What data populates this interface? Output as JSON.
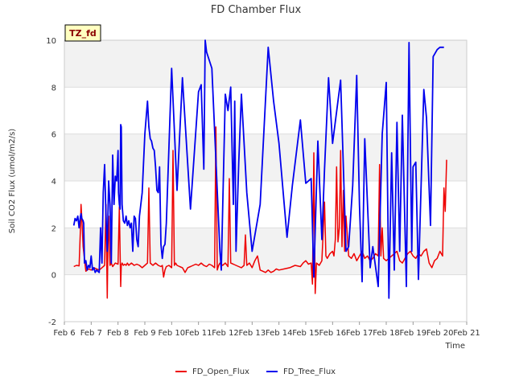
{
  "chart_data": {
    "type": "line",
    "title": "FD Chamber Flux",
    "xlabel": "Time",
    "ylabel": "Soil CO2 Flux (umol/m2/s)",
    "annotation": "TZ_fd",
    "xlim": [
      6,
      21
    ],
    "ylim": [
      -2,
      10
    ],
    "x_ticks": [
      {
        "value": 6,
        "label": "Feb 6"
      },
      {
        "value": 7,
        "label": "Feb 7"
      },
      {
        "value": 8,
        "label": "Feb 8"
      },
      {
        "value": 9,
        "label": "Feb 9"
      },
      {
        "value": 10,
        "label": "Feb 10"
      },
      {
        "value": 11,
        "label": "Feb 11"
      },
      {
        "value": 12,
        "label": "Feb 12"
      },
      {
        "value": 13,
        "label": "Feb 13"
      },
      {
        "value": 14,
        "label": "Feb 14"
      },
      {
        "value": 15,
        "label": "Feb 15"
      },
      {
        "value": 16,
        "label": "Feb 16"
      },
      {
        "value": 17,
        "label": "Feb 17"
      },
      {
        "value": 18,
        "label": "Feb 18"
      },
      {
        "value": 19,
        "label": "Feb 19"
      },
      {
        "value": 20,
        "label": "Feb 20"
      },
      {
        "value": 21,
        "label": "Feb 21"
      }
    ],
    "y_ticks": [
      {
        "value": -2,
        "label": "-2"
      },
      {
        "value": 0,
        "label": "0"
      },
      {
        "value": 2,
        "label": "2"
      },
      {
        "value": 4,
        "label": "4"
      },
      {
        "value": 6,
        "label": "6"
      },
      {
        "value": 8,
        "label": "8"
      },
      {
        "value": 10,
        "label": "10"
      }
    ],
    "legend_position": "bottom-center",
    "series": [
      {
        "name": "FD_Open_Flux",
        "color": "#ee0000",
        "x": [
          6.35,
          6.45,
          6.55,
          6.6,
          6.62,
          6.65,
          6.7,
          6.8,
          6.9,
          7.0,
          7.1,
          7.2,
          7.3,
          7.4,
          7.5,
          7.55,
          7.6,
          7.62,
          7.65,
          7.7,
          7.75,
          7.8,
          7.9,
          8.0,
          8.05,
          8.1,
          8.12,
          8.15,
          8.2,
          8.25,
          8.3,
          8.35,
          8.4,
          8.5,
          8.6,
          8.7,
          8.8,
          8.9,
          9.0,
          9.1,
          9.15,
          9.2,
          9.25,
          9.3,
          9.4,
          9.5,
          9.6,
          9.65,
          9.7,
          9.75,
          9.8,
          9.9,
          10.0,
          10.05,
          10.1,
          10.15,
          10.2,
          10.3,
          10.4,
          10.5,
          10.6,
          10.7,
          10.8,
          10.9,
          11.0,
          11.1,
          11.2,
          11.3,
          11.4,
          11.5,
          11.6,
          11.65,
          11.7,
          11.75,
          11.8,
          11.9,
          12.0,
          12.1,
          12.15,
          12.2,
          12.3,
          12.4,
          12.5,
          12.6,
          12.7,
          12.75,
          12.8,
          12.9,
          13.0,
          13.1,
          13.2,
          13.3,
          13.4,
          13.5,
          13.6,
          13.7,
          13.8,
          13.9,
          14.0,
          14.2,
          14.4,
          14.6,
          14.8,
          14.9,
          15.0,
          15.1,
          15.2,
          15.25,
          15.3,
          15.35,
          15.4,
          15.5,
          15.6,
          15.7,
          15.75,
          15.8,
          15.9,
          16.0,
          16.05,
          16.1,
          16.15,
          16.2,
          16.25,
          16.3,
          16.35,
          16.4,
          16.45,
          16.5,
          16.6,
          16.7,
          16.8,
          16.9,
          17.0,
          17.1,
          17.2,
          17.3,
          17.4,
          17.5,
          17.6,
          17.7,
          17.75,
          17.8,
          17.85,
          17.9,
          18.0,
          18.1,
          18.2,
          18.3,
          18.4,
          18.5,
          18.6,
          18.7,
          18.8,
          18.9,
          19.0,
          19.1,
          19.2,
          19.3,
          19.4,
          19.5,
          19.6,
          19.7,
          19.8,
          19.9,
          20.0,
          20.1,
          20.15,
          20.2,
          20.25
        ],
        "values": [
          0.35,
          0.4,
          0.38,
          2.0,
          3.0,
          2.4,
          1.2,
          0.15,
          0.25,
          0.2,
          0.3,
          0.25,
          0.2,
          0.3,
          0.4,
          3.0,
          -1.0,
          1.0,
          2.5,
          0.4,
          0.5,
          0.35,
          0.5,
          0.45,
          2.9,
          -0.5,
          0.4,
          0.5,
          0.4,
          0.45,
          0.4,
          0.5,
          0.4,
          0.5,
          0.4,
          0.45,
          0.4,
          0.3,
          0.4,
          0.5,
          3.7,
          0.5,
          0.45,
          0.4,
          0.5,
          0.4,
          0.35,
          0.4,
          -0.1,
          0.2,
          0.35,
          0.4,
          0.3,
          5.3,
          0.4,
          0.5,
          0.4,
          0.35,
          0.3,
          0.1,
          0.3,
          0.35,
          0.4,
          0.45,
          0.4,
          0.5,
          0.4,
          0.35,
          0.45,
          0.4,
          0.3,
          6.3,
          0.2,
          0.4,
          0.5,
          0.4,
          0.5,
          0.35,
          4.1,
          0.5,
          0.45,
          0.4,
          0.35,
          0.3,
          0.4,
          1.7,
          0.4,
          0.5,
          0.3,
          0.6,
          0.8,
          0.2,
          0.15,
          0.1,
          0.2,
          0.1,
          0.15,
          0.25,
          0.2,
          0.25,
          0.3,
          0.4,
          0.35,
          0.5,
          0.6,
          0.45,
          0.5,
          -0.4,
          5.2,
          -0.8,
          0.5,
          0.4,
          0.6,
          3.1,
          0.8,
          0.7,
          0.9,
          1.0,
          0.8,
          1.5,
          4.6,
          1.4,
          2.0,
          5.3,
          1.2,
          3.6,
          1.0,
          2.5,
          0.8,
          0.7,
          0.9,
          0.6,
          0.8,
          1.0,
          0.7,
          0.8,
          0.6,
          0.7,
          0.9,
          0.8,
          4.7,
          0.8,
          2.0,
          0.7,
          0.6,
          0.7,
          0.8,
          0.9,
          1.0,
          0.6,
          0.5,
          0.7,
          0.9,
          1.0,
          0.8,
          0.7,
          0.9,
          0.8,
          1.0,
          1.1,
          0.5,
          0.3,
          0.6,
          0.7,
          1.0,
          0.8,
          3.7,
          2.7,
          4.9
        ]
      },
      {
        "name": "FD_Tree_Flux",
        "color": "#0000ee",
        "x": [
          6.35,
          6.4,
          6.45,
          6.5,
          6.55,
          6.6,
          6.62,
          6.65,
          6.7,
          6.72,
          6.75,
          6.8,
          6.85,
          6.9,
          6.95,
          7.0,
          7.05,
          7.1,
          7.15,
          7.2,
          7.3,
          7.35,
          7.4,
          7.45,
          7.5,
          7.55,
          7.6,
          7.65,
          7.7,
          7.75,
          7.8,
          7.85,
          7.9,
          7.95,
          8.0,
          8.02,
          8.05,
          8.08,
          8.1,
          8.12,
          8.15,
          8.2,
          8.25,
          8.3,
          8.35,
          8.4,
          8.45,
          8.5,
          8.55,
          8.6,
          8.65,
          8.7,
          8.75,
          8.8,
          8.9,
          9.0,
          9.1,
          9.15,
          9.2,
          9.25,
          9.3,
          9.35,
          9.4,
          9.45,
          9.5,
          9.55,
          9.6,
          9.65,
          9.7,
          9.75,
          9.8,
          9.9,
          10.0,
          10.2,
          10.4,
          10.7,
          11.0,
          11.1,
          11.2,
          11.25,
          11.3,
          11.5,
          11.8,
          11.85,
          11.9,
          12.0,
          12.1,
          12.2,
          12.3,
          12.35,
          12.4,
          12.5,
          12.6,
          12.8,
          13.0,
          13.3,
          13.6,
          13.8,
          14.0,
          14.3,
          14.5,
          14.8,
          15.0,
          15.2,
          15.3,
          15.45,
          15.6,
          15.7,
          15.85,
          16.0,
          16.3,
          16.5,
          16.6,
          16.75,
          16.9,
          17.0,
          17.1,
          17.2,
          17.4,
          17.5,
          17.7,
          17.85,
          18.0,
          18.1,
          18.2,
          18.3,
          18.4,
          18.5,
          18.6,
          18.75,
          18.85,
          18.95,
          19.0,
          19.1,
          19.2,
          19.4,
          19.5,
          19.65,
          19.75,
          19.9,
          20.0,
          20.15
        ],
        "values": [
          2.1,
          2.4,
          2.3,
          2.5,
          2.0,
          2.5,
          2.6,
          2.4,
          2.3,
          2.2,
          0.5,
          0.6,
          0.2,
          0.4,
          0.3,
          0.8,
          0.2,
          0.3,
          0.1,
          0.2,
          0.1,
          2.0,
          0.5,
          3.5,
          4.7,
          2.5,
          1.0,
          4.0,
          3.0,
          0.5,
          5.1,
          3.0,
          4.2,
          4.0,
          5.3,
          3.5,
          3.0,
          2.8,
          6.4,
          6.3,
          3.0,
          2.3,
          2.2,
          2.5,
          2.1,
          2.3,
          2.0,
          2.2,
          1.0,
          2.5,
          2.4,
          1.5,
          1.2,
          2.5,
          3.5,
          6.0,
          7.4,
          6.3,
          5.8,
          5.7,
          5.4,
          5.3,
          4.6,
          3.6,
          3.5,
          4.6,
          1.3,
          0.7,
          1.2,
          1.3,
          2.2,
          5.5,
          8.8,
          3.6,
          8.4,
          2.8,
          7.8,
          8.1,
          4.5,
          10.0,
          9.5,
          8.8,
          1.0,
          0.2,
          2.8,
          7.7,
          7.0,
          8.0,
          3.0,
          7.4,
          1.0,
          4.8,
          7.7,
          3.5,
          1.0,
          3.0,
          9.7,
          7.4,
          5.6,
          1.6,
          3.8,
          6.6,
          3.9,
          4.1,
          -0.1,
          5.7,
          1.5,
          4.5,
          8.4,
          5.6,
          8.3,
          1.0,
          1.2,
          3.8,
          8.5,
          3.0,
          -0.3,
          5.8,
          0.3,
          1.2,
          -0.5,
          6.0,
          8.2,
          -1.0,
          5.2,
          0.2,
          6.5,
          1.0,
          6.8,
          -0.5,
          9.9,
          1.0,
          4.6,
          4.8,
          -0.2,
          7.9,
          6.7,
          2.1,
          9.3,
          9.6,
          9.7,
          9.7
        ]
      }
    ]
  }
}
